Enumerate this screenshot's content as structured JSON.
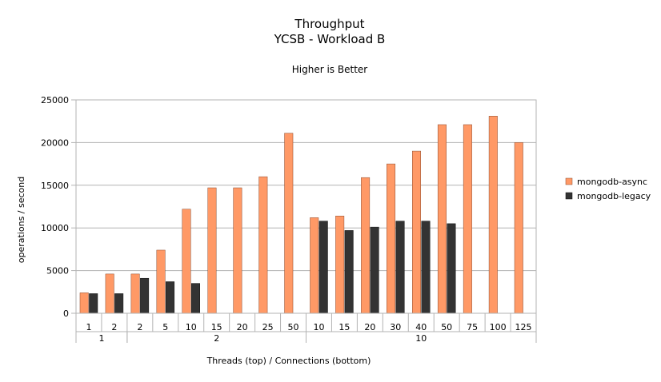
{
  "chart_data": {
    "type": "bar",
    "title": "Throughput",
    "subtitle": "YCSB - Workload B",
    "note": "Higher is Better",
    "xlabel": "Threads (top) / Connections (bottom)",
    "ylabel": "operations / second",
    "ylim": [
      0,
      25000
    ],
    "yticks": [
      0,
      5000,
      10000,
      15000,
      20000,
      25000
    ],
    "grid": true,
    "legend_position": "right",
    "categories": [
      "1",
      "2",
      "2",
      "5",
      "10",
      "15",
      "20",
      "25",
      "50",
      "10",
      "15",
      "20",
      "30",
      "40",
      "50",
      "75",
      "100",
      "125"
    ],
    "groups": [
      {
        "label": "1",
        "start": 0,
        "count": 2
      },
      {
        "label": "2",
        "start": 2,
        "count": 7
      },
      {
        "label": "10",
        "start": 9,
        "count": 9
      }
    ],
    "series": [
      {
        "name": "mongodb-async",
        "color": "#ff9966",
        "values": [
          2400,
          4600,
          4600,
          7400,
          12200,
          14700,
          14700,
          16000,
          21100,
          11200,
          11400,
          15900,
          17500,
          19000,
          22100,
          22100,
          23100,
          20000
        ]
      },
      {
        "name": "mongodb-legacy",
        "color": "#333333",
        "values": [
          2300,
          2300,
          4100,
          3700,
          3500,
          null,
          null,
          null,
          null,
          10800,
          9700,
          10100,
          10800,
          10800,
          10500,
          null,
          null,
          null
        ]
      }
    ]
  }
}
